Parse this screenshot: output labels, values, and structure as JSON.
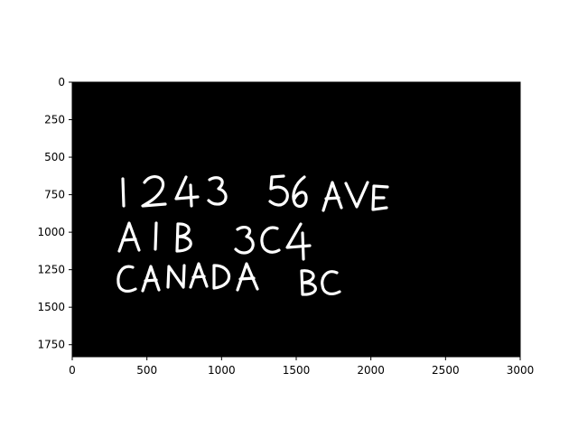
{
  "chart_data": {
    "type": "image",
    "title": "",
    "xlabel": "",
    "ylabel": "",
    "xlim": [
      0,
      3000
    ],
    "ylim": [
      1830,
      0
    ],
    "xticks": [
      0,
      500,
      1000,
      1500,
      2000,
      2500,
      3000
    ],
    "yticks": [
      0,
      250,
      500,
      750,
      1000,
      1250,
      1500,
      1750
    ],
    "xtick_labels": [
      "0",
      "500",
      "1000",
      "1500",
      "2000",
      "2500",
      "3000"
    ],
    "ytick_labels": [
      "0",
      "250",
      "500",
      "750",
      "1000",
      "1250",
      "1500",
      "1750"
    ],
    "image_background": "#000000",
    "ink_color": "#ffffff",
    "handwritten_lines": [
      "1243 56 AVE",
      "A1B 3C4",
      "CANADA BC"
    ],
    "grid": false
  }
}
